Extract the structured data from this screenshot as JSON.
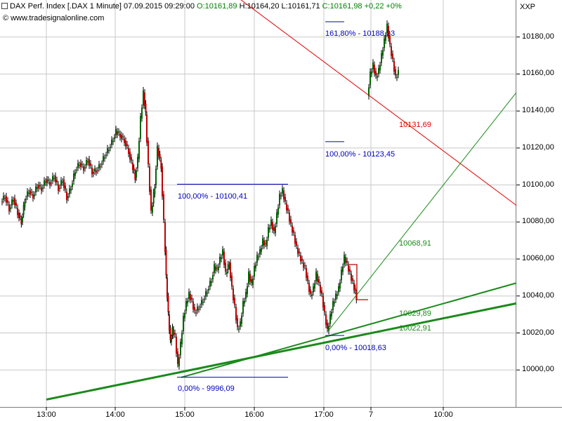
{
  "header": {
    "symbol": "DAX Perf. Index [.DAX  1 Minute]",
    "datetime": "07.09.2015 09:29:00",
    "open": "O:10161,89",
    "high": "H:10164,20",
    "low": "L:10161,71",
    "close": "C:10161,98 +0,22 +0%",
    "source": "www.tradesignalonline.com",
    "copyright": "©"
  },
  "colors": {
    "up": "#006400",
    "down": "#c00000",
    "trend": "#1a8a1a",
    "fib": "#0000c0",
    "resist": "#e00000",
    "grid": "#c8c8c8"
  },
  "chart_data": {
    "type": "candlestick",
    "title": "DAX Perf. Index [.DAX  1 Minute]",
    "y_axis_title": "XXP",
    "ylim": [
      9980,
      10200
    ],
    "yticks": [
      "10000,00",
      "10020,00",
      "10040,00",
      "10060,00",
      "10080,00",
      "10100,00",
      "10120,00",
      "10140,00",
      "10160,00",
      "10180,00"
    ],
    "ytick_values": [
      10000,
      10020,
      10040,
      10060,
      10080,
      10100,
      10120,
      10140,
      10160,
      10180
    ],
    "xticks": [
      "13:00",
      "14:00",
      "15:00",
      "16:00",
      "17:00",
      "7",
      "10:00"
    ],
    "xtick_index": [
      66,
      164,
      263,
      362,
      461,
      528,
      631
    ],
    "x_index_range": [
      0,
      735
    ],
    "grid": true,
    "price_path": [
      [
        2,
        10091
      ],
      [
        8,
        10094
      ],
      [
        14,
        10087
      ],
      [
        20,
        10093
      ],
      [
        26,
        10085
      ],
      [
        31,
        10080
      ],
      [
        36,
        10092
      ],
      [
        42,
        10097
      ],
      [
        48,
        10094
      ],
      [
        54,
        10100
      ],
      [
        60,
        10098
      ],
      [
        66,
        10103
      ],
      [
        72,
        10101
      ],
      [
        78,
        10105
      ],
      [
        84,
        10098
      ],
      [
        90,
        10103
      ],
      [
        96,
        10093
      ],
      [
        102,
        10099
      ],
      [
        108,
        10108
      ],
      [
        114,
        10112
      ],
      [
        120,
        10109
      ],
      [
        126,
        10114
      ],
      [
        132,
        10107
      ],
      [
        138,
        10108
      ],
      [
        144,
        10111
      ],
      [
        150,
        10116
      ],
      [
        156,
        10120
      ],
      [
        162,
        10125
      ],
      [
        166,
        10129
      ],
      [
        172,
        10127
      ],
      [
        178,
        10124
      ],
      [
        184,
        10118
      ],
      [
        188,
        10112
      ],
      [
        193,
        10104
      ],
      [
        197,
        10114
      ],
      [
        201,
        10136
      ],
      [
        205,
        10150
      ],
      [
        208,
        10138
      ],
      [
        212,
        10110
      ],
      [
        216,
        10085
      ],
      [
        221,
        10100
      ],
      [
        225,
        10120
      ],
      [
        230,
        10110
      ],
      [
        234,
        10080
      ],
      [
        237,
        10050
      ],
      [
        240,
        10030
      ],
      [
        243,
        10015
      ],
      [
        246,
        10022
      ],
      [
        250,
        10018
      ],
      [
        254,
        10002
      ],
      [
        258,
        10014
      ],
      [
        262,
        10028
      ],
      [
        266,
        10036
      ],
      [
        270,
        10041
      ],
      [
        274,
        10037
      ],
      [
        278,
        10031
      ],
      [
        284,
        10034
      ],
      [
        290,
        10038
      ],
      [
        296,
        10043
      ],
      [
        302,
        10049
      ],
      [
        306,
        10056
      ],
      [
        310,
        10054
      ],
      [
        314,
        10060
      ],
      [
        318,
        10064
      ],
      [
        322,
        10052
      ],
      [
        327,
        10058
      ],
      [
        331,
        10044
      ],
      [
        335,
        10034
      ],
      [
        339,
        10022
      ],
      [
        343,
        10025
      ],
      [
        347,
        10036
      ],
      [
        351,
        10041
      ],
      [
        355,
        10052
      ],
      [
        359,
        10046
      ],
      [
        363,
        10055
      ],
      [
        367,
        10061
      ],
      [
        371,
        10064
      ],
      [
        375,
        10070
      ],
      [
        379,
        10067
      ],
      [
        383,
        10076
      ],
      [
        387,
        10080
      ],
      [
        391,
        10074
      ],
      [
        395,
        10084
      ],
      [
        399,
        10094
      ],
      [
        403,
        10097
      ],
      [
        407,
        10090
      ],
      [
        411,
        10085
      ],
      [
        415,
        10078
      ],
      [
        419,
        10073
      ],
      [
        423,
        10066
      ],
      [
        427,
        10062
      ],
      [
        431,
        10058
      ],
      [
        435,
        10055
      ],
      [
        439,
        10047
      ],
      [
        443,
        10040
      ],
      [
        447,
        10044
      ],
      [
        451,
        10052
      ],
      [
        455,
        10046
      ],
      [
        459,
        10040
      ],
      [
        463,
        10030
      ],
      [
        467,
        10021
      ],
      [
        471,
        10029
      ],
      [
        475,
        10036
      ],
      [
        479,
        10040
      ],
      [
        483,
        10044
      ],
      [
        487,
        10053
      ],
      [
        491,
        10061
      ],
      [
        495,
        10057
      ],
      [
        499,
        10052
      ],
      [
        503,
        10047
      ],
      [
        508,
        10039
      ],
      [
        524,
        10148
      ],
      [
        528,
        10160
      ],
      [
        532,
        10165
      ],
      [
        536,
        10158
      ],
      [
        540,
        10162
      ],
      [
        544,
        10170
      ],
      [
        548,
        10178
      ],
      [
        552,
        10186
      ],
      [
        556,
        10175
      ],
      [
        560,
        10167
      ],
      [
        564,
        10158
      ],
      [
        568,
        10161
      ]
    ],
    "trendlines": [
      {
        "x1": 66,
        "y1": 9984,
        "x2": 735,
        "y2": 10036,
        "width": 3
      },
      {
        "x1": 258,
        "y1": 9996,
        "x2": 735,
        "y2": 10047,
        "width": 2
      },
      {
        "x1": 467,
        "y1": 10021,
        "x2": 735,
        "y2": 10150,
        "width": 1
      }
    ],
    "resistance": {
      "x1": 322,
      "y1": 10206,
      "x2": 735,
      "y2": 10089
    },
    "fib_lines": [
      {
        "x1": 252,
        "x2": 410,
        "y": 10100.41,
        "label": "100,00% - 10100,41",
        "lx": 253,
        "ly": 10096
      },
      {
        "x1": 252,
        "x2": 410,
        "y": 9996.09,
        "label": "0,00% - 9996,09",
        "lx": 253,
        "ly": 9992
      },
      {
        "x1": 463,
        "x2": 490,
        "y": 10123.45,
        "label": "100,00% - 10123,45",
        "lx": 463,
        "ly": 10119
      },
      {
        "x1": 463,
        "x2": 490,
        "y": 10188.23,
        "label": "161,80% - 10188,23",
        "lx": 463,
        "ly": 10184
      },
      {
        "x1": 463,
        "x2": 490,
        "y": 10018.63,
        "label": "0,00% - 10018,63",
        "lx": 463,
        "ly": 10014
      }
    ],
    "annotations": [
      {
        "text": "10131,69",
        "x": 568,
        "y": 10132,
        "color": "resist"
      },
      {
        "text": "10068,91",
        "x": 568,
        "y": 10068,
        "color": "trend"
      },
      {
        "text": "10029,89",
        "x": 568,
        "y": 10030,
        "color": "trend"
      },
      {
        "text": "10022,91",
        "x": 568,
        "y": 10022,
        "color": "trend"
      }
    ],
    "bracket": {
      "x1": 497,
      "x2": 508,
      "ytop": 10057,
      "xend": 524,
      "ybot": 10038
    }
  }
}
